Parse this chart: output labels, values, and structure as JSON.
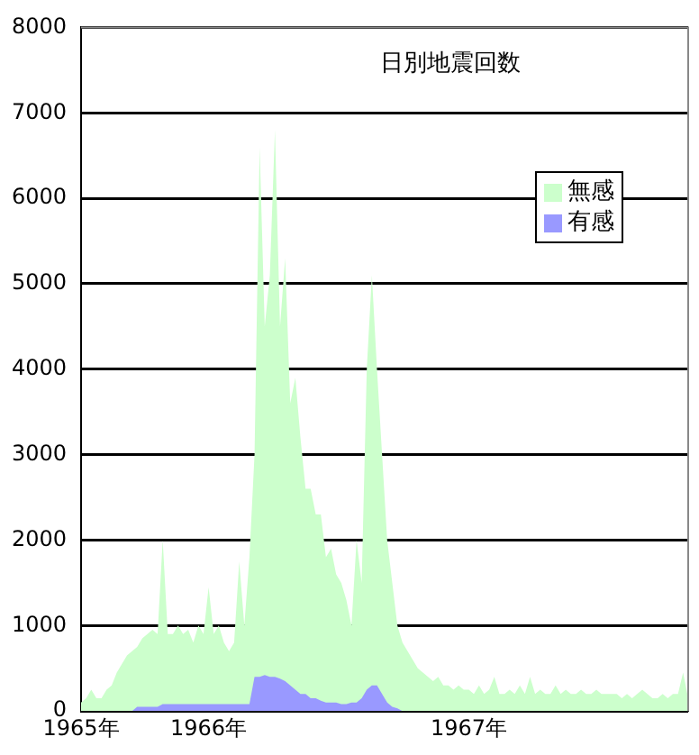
{
  "chart_data": {
    "type": "area",
    "title": "日別地震回数",
    "categories": [
      "1965年",
      null,
      null,
      null,
      null,
      null,
      null,
      null,
      null,
      null,
      null,
      null,
      null,
      null,
      null,
      null,
      null,
      null,
      null,
      null,
      null,
      null,
      null,
      null,
      null,
      "1966年",
      null,
      null,
      null,
      null,
      null,
      null,
      null,
      null,
      null,
      null,
      null,
      null,
      null,
      null,
      null,
      null,
      null,
      null,
      null,
      null,
      null,
      null,
      null,
      null,
      null,
      null,
      null,
      null,
      null,
      null,
      null,
      null,
      null,
      null,
      null,
      null,
      null,
      null,
      null,
      null,
      null,
      null,
      null,
      null,
      null,
      null,
      null,
      null,
      null,
      null,
      "1967年",
      null,
      null,
      null,
      null,
      null,
      null,
      null,
      null,
      null,
      null,
      null,
      null,
      null,
      null,
      null,
      null,
      null,
      null,
      null,
      null,
      null,
      null,
      null,
      null,
      null,
      null,
      null,
      null,
      null,
      null,
      null,
      null,
      null,
      null,
      null,
      null,
      null,
      null,
      null,
      null,
      null,
      null,
      null
    ],
    "series": [
      {
        "name": "無感",
        "color": "#ccffcc",
        "values": [
          100,
          150,
          250,
          150,
          150,
          250,
          300,
          450,
          550,
          650,
          700,
          750,
          850,
          900,
          950,
          900,
          2000,
          900,
          900,
          1000,
          900,
          950,
          800,
          1000,
          900,
          1450,
          900,
          1000,
          800,
          700,
          800,
          1750,
          1000,
          1800,
          3000,
          6600,
          4500,
          5100,
          6800,
          4500,
          5300,
          3600,
          3900,
          3200,
          2600,
          2600,
          2300,
          2300,
          1800,
          1900,
          1600,
          1500,
          1300,
          1000,
          2000,
          1500,
          4000,
          5100,
          4000,
          3000,
          2000,
          1500,
          1000,
          800,
          700,
          600,
          500,
          450,
          400,
          350,
          400,
          300,
          300,
          250,
          300,
          250,
          250,
          200,
          300,
          200,
          250,
          400,
          200,
          200,
          250,
          200,
          300,
          200,
          400,
          200,
          250,
          200,
          200,
          300,
          200,
          250,
          200,
          200,
          250,
          200,
          200,
          250,
          200,
          200,
          200,
          200,
          150,
          200,
          150,
          200,
          250,
          200,
          150,
          150,
          200,
          150,
          200,
          200,
          450,
          150
        ]
      },
      {
        "name": "有感",
        "color": "#9999ff",
        "values": [
          0,
          0,
          0,
          0,
          0,
          0,
          0,
          0,
          0,
          0,
          0,
          50,
          50,
          50,
          50,
          50,
          80,
          80,
          80,
          80,
          80,
          80,
          80,
          80,
          80,
          80,
          80,
          80,
          80,
          80,
          80,
          80,
          80,
          80,
          400,
          400,
          420,
          400,
          400,
          380,
          350,
          300,
          250,
          200,
          200,
          150,
          150,
          120,
          100,
          100,
          100,
          80,
          80,
          100,
          100,
          150,
          250,
          300,
          300,
          200,
          100,
          50,
          30,
          0,
          0,
          0,
          0,
          0,
          0,
          0,
          0,
          0,
          0,
          0,
          0,
          0,
          0,
          0,
          0,
          0,
          0,
          0,
          0,
          0,
          0,
          0,
          0,
          0,
          0,
          0,
          0,
          0,
          0,
          0,
          0,
          0,
          0,
          0,
          0,
          0,
          0,
          0,
          0,
          0,
          0,
          0,
          0,
          0,
          0,
          0,
          0,
          0,
          0,
          0,
          0,
          0,
          0,
          0,
          0,
          0
        ]
      }
    ],
    "ylim": [
      0,
      8000
    ],
    "yticks": [
      0,
      1000,
      2000,
      3000,
      4000,
      5000,
      6000,
      7000,
      8000
    ],
    "grid": "y",
    "legend": "right"
  }
}
